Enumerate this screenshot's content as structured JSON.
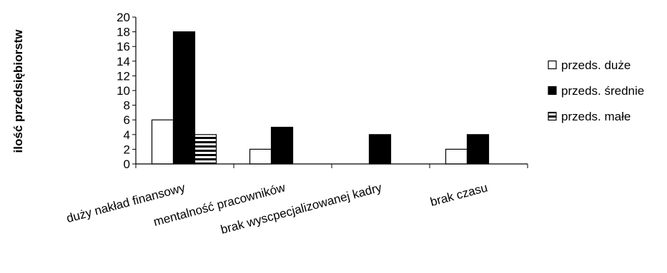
{
  "chart_data": {
    "type": "bar",
    "title": "",
    "xlabel": "",
    "ylabel": "ilość przedsiębiorstw",
    "ylim": [
      0,
      20
    ],
    "yticks": [
      0,
      2,
      4,
      6,
      8,
      10,
      12,
      14,
      16,
      18,
      20
    ],
    "grid": false,
    "legend_position": "right",
    "categories": [
      "duży nakład finansowy",
      "mentalność pracowników",
      "brak wyscpecjalizowanej kadry",
      "brak czasu"
    ],
    "series": [
      {
        "name": "przeds. duże",
        "values": [
          6,
          2,
          0,
          2
        ],
        "fill": "white"
      },
      {
        "name": "przeds. średnie",
        "values": [
          18,
          5,
          4,
          4
        ],
        "fill": "black"
      },
      {
        "name": "przeds. małe",
        "values": [
          4,
          0,
          0,
          0
        ],
        "fill": "horizontal-stripes"
      }
    ]
  }
}
